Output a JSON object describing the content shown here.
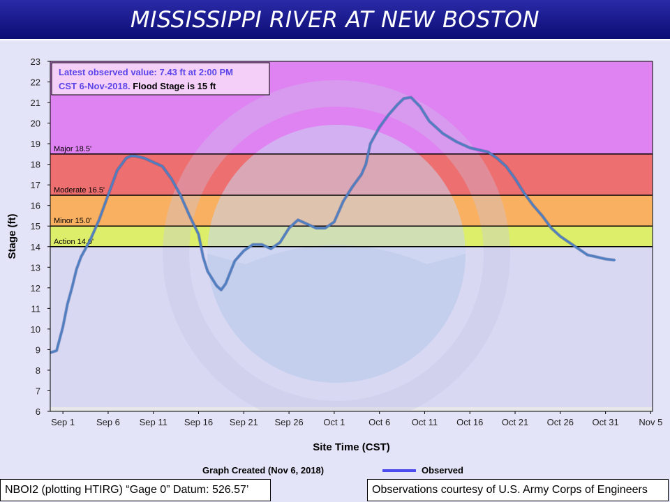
{
  "header": {
    "title": "MISSISSIPPI RIVER AT NEW BOSTON"
  },
  "chart_data": {
    "type": "line",
    "title": "",
    "xlabel": "Site Time (CST)",
    "ylabel": "Stage (ft)",
    "ylim": [
      6,
      23
    ],
    "y_ticks": [
      6,
      7,
      8,
      9,
      10,
      11,
      12,
      13,
      14,
      15,
      16,
      17,
      18,
      19,
      20,
      21,
      22,
      23
    ],
    "x_start_label": "Sep 1",
    "x_ticks": [
      "Sep 1",
      "Sep 6",
      "Sep 11",
      "Sep 16",
      "Sep 21",
      "Sep 26",
      "Oct 1",
      "Oct 6",
      "Oct 11",
      "Oct 16",
      "Oct 21",
      "Oct 26",
      "Oct 31",
      "Nov 5"
    ],
    "x_range_days": [
      -1.4,
      65.2
    ],
    "grid": false,
    "legend": "bottom",
    "annotation_line1": "Latest observed value: 7.43 ft at 2:00 PM",
    "annotation_line2_colored": "CST 6-Nov-2018.",
    "annotation_line2_rest": " Flood Stage is 15 ft",
    "stages": [
      {
        "name": "Major",
        "label": "Major 18.5'",
        "value": 18.5,
        "top": 23,
        "color": "#e083f2"
      },
      {
        "name": "Moderate",
        "label": "Moderate 16.5'",
        "value": 16.5,
        "top": 18.5,
        "color": "#ee6f6f"
      },
      {
        "name": "Minor",
        "label": "Minor 15.0'",
        "value": 15.0,
        "top": 16.5,
        "color": "#f9b060"
      },
      {
        "name": "Action",
        "label": "Action 14.0'",
        "value": 14.0,
        "top": 15.0,
        "color": "#dcee6a"
      }
    ],
    "series": [
      {
        "name": "Observed",
        "color": "#4f7fc0",
        "points": [
          [
            -1.4,
            8.85
          ],
          [
            -0.7,
            8.95
          ],
          [
            0,
            10.1
          ],
          [
            0.5,
            11.2
          ],
          [
            1,
            12.0
          ],
          [
            1.5,
            12.9
          ],
          [
            2,
            13.5
          ],
          [
            3,
            14.3
          ],
          [
            4,
            15.3
          ],
          [
            5,
            16.5
          ],
          [
            6,
            17.7
          ],
          [
            7,
            18.3
          ],
          [
            7.5,
            18.4
          ],
          [
            8,
            18.4
          ],
          [
            9,
            18.3
          ],
          [
            10,
            18.1
          ],
          [
            11,
            17.9
          ],
          [
            12,
            17.3
          ],
          [
            13,
            16.5
          ],
          [
            14,
            15.5
          ],
          [
            15,
            14.6
          ],
          [
            15.5,
            13.5
          ],
          [
            16,
            12.8
          ],
          [
            17,
            12.1
          ],
          [
            17.5,
            11.9
          ],
          [
            18,
            12.2
          ],
          [
            19,
            13.3
          ],
          [
            20,
            13.8
          ],
          [
            21,
            14.1
          ],
          [
            22,
            14.1
          ],
          [
            23,
            13.9
          ],
          [
            24,
            14.2
          ],
          [
            25,
            14.9
          ],
          [
            26,
            15.3
          ],
          [
            27,
            15.1
          ],
          [
            28,
            14.9
          ],
          [
            29,
            14.9
          ],
          [
            30,
            15.2
          ],
          [
            31,
            16.2
          ],
          [
            32,
            16.9
          ],
          [
            33,
            17.5
          ],
          [
            33.5,
            18.0
          ],
          [
            34,
            19.0
          ],
          [
            35,
            19.8
          ],
          [
            36,
            20.4
          ],
          [
            37,
            20.9
          ],
          [
            37.7,
            21.2
          ],
          [
            38.5,
            21.25
          ],
          [
            39.5,
            20.8
          ],
          [
            40.5,
            20.1
          ],
          [
            42,
            19.5
          ],
          [
            43.5,
            19.1
          ],
          [
            45,
            18.8
          ],
          [
            46,
            18.7
          ],
          [
            47,
            18.6
          ],
          [
            48,
            18.3
          ],
          [
            49,
            17.9
          ],
          [
            50,
            17.3
          ],
          [
            51,
            16.6
          ],
          [
            52,
            16.0
          ],
          [
            53,
            15.5
          ],
          [
            54,
            14.9
          ],
          [
            55,
            14.5
          ],
          [
            56,
            14.2
          ],
          [
            57,
            13.9
          ],
          [
            58,
            13.6
          ],
          [
            59,
            13.5
          ],
          [
            60,
            13.4
          ],
          [
            61,
            13.35
          ]
        ]
      }
    ]
  },
  "footer": {
    "created": "Graph Created (Nov 6, 2018)",
    "legend_label": "Observed",
    "datum": "NBOI2 (plotting HTIRG) “Gage 0” Datum: 526.57’",
    "courtesy": "Observations courtesy of U.S. Army Corps of Engineers"
  },
  "colors": {
    "title_bg": "#10107c",
    "plot_bg": "#d8d8f2",
    "annotation_blue": "#5b44e8",
    "series_line": "#4f7fc0"
  }
}
